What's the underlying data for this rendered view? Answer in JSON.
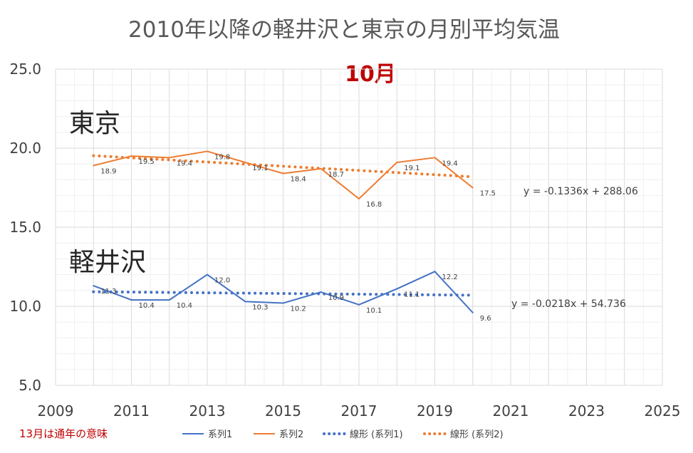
{
  "chart_data": {
    "type": "line",
    "title": "2010年以降の軽井沢と東京の月別平均気温",
    "subtitle": "10月",
    "xlim": [
      2009,
      2025
    ],
    "ylim": [
      5.0,
      25.0
    ],
    "x_ticks": [
      2009,
      2011,
      2013,
      2015,
      2017,
      2019,
      2021,
      2023,
      2025
    ],
    "y_ticks": [
      "5.0",
      "10.0",
      "15.0",
      "20.0",
      "25.0"
    ],
    "grid": true,
    "legend_position": "bottom",
    "x": [
      2010,
      2011,
      2012,
      2013,
      2014,
      2015,
      2016,
      2017,
      2018,
      2019,
      2020
    ],
    "series": [
      {
        "name": "系列1",
        "color": "#4472c4",
        "values": [
          11.3,
          10.4,
          10.4,
          12.0,
          10.3,
          10.2,
          10.9,
          10.1,
          11.1,
          12.2,
          9.6
        ],
        "labels": [
          "11.3",
          "10.4",
          "10.4",
          "12.0",
          "10.3",
          "10.2",
          "10.9",
          "10.1",
          "11.1",
          "12.2",
          "9.6"
        ]
      },
      {
        "name": "系列2",
        "color": "#ed7d31",
        "values": [
          18.9,
          19.5,
          19.4,
          19.8,
          19.1,
          18.4,
          18.7,
          16.8,
          19.1,
          19.4,
          17.5
        ],
        "labels": [
          "18.9",
          "19.5",
          "19.4",
          "19.8",
          "19.1",
          "18.4",
          "18.7",
          "16.8",
          "19.1",
          "19.4",
          "17.5"
        ]
      }
    ],
    "trendlines": [
      {
        "name": "線形 (系列1)",
        "color": "#4472c4",
        "slope": -0.0218,
        "intercept": 54.736,
        "x_range": [
          2010,
          2020
        ],
        "equation": "y = -0.0218x + 54.736"
      },
      {
        "name": "線形 (系列2)",
        "color": "#ed7d31",
        "slope": -0.1336,
        "intercept": 288.06,
        "x_range": [
          2010,
          2020
        ],
        "equation": "y = -0.1336x + 288.06"
      }
    ],
    "annotations": {
      "tokyo": "東京",
      "karuizawa": "軽井沢",
      "note": "13月は通年の意味"
    }
  },
  "colors": {
    "axis_text": "#404040",
    "grid_major": "#d9d9d9",
    "grid_minor": "#efefef",
    "subtitle": "#c00000",
    "note": "#c00000"
  }
}
